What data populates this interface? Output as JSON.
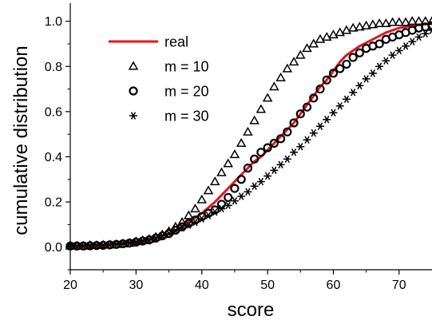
{
  "chart_data": {
    "type": "line",
    "xlabel": "score",
    "ylabel": "cumulative distribution",
    "xlim": [
      20,
      75
    ],
    "ylim": [
      -0.1,
      1.08
    ],
    "xticks": [
      "20",
      "30",
      "40",
      "50",
      "60",
      "70"
    ],
    "yticks": [
      "0.0",
      "0.2",
      "0.4",
      "0.6",
      "0.8",
      "1.0"
    ],
    "xtick_values": [
      20,
      30,
      40,
      50,
      60,
      70
    ],
    "ytick_values": [
      0.0,
      0.2,
      0.4,
      0.6,
      0.8,
      1.0
    ],
    "legend_position": "top-left",
    "series": [
      {
        "name": "real",
        "style": "line",
        "color": "#e8141b",
        "x": [
          20,
          25,
          30,
          33,
          35,
          37,
          38,
          40,
          42,
          44,
          46,
          48,
          49,
          50,
          51,
          52,
          53,
          54,
          55,
          56,
          57,
          58,
          59,
          60,
          61,
          62,
          63,
          64,
          66,
          68,
          70,
          72,
          75
        ],
        "y": [
          0.0,
          0.005,
          0.02,
          0.04,
          0.06,
          0.09,
          0.11,
          0.15,
          0.2,
          0.26,
          0.32,
          0.38,
          0.4,
          0.43,
          0.46,
          0.49,
          0.52,
          0.55,
          0.59,
          0.63,
          0.67,
          0.71,
          0.74,
          0.78,
          0.82,
          0.85,
          0.87,
          0.89,
          0.92,
          0.95,
          0.97,
          0.98,
          0.99
        ]
      },
      {
        "name": "m = 10",
        "style": "triangle",
        "color": "#000000",
        "x": [
          20,
          21,
          22,
          23,
          24,
          25,
          26,
          27,
          28,
          29,
          30,
          31,
          32,
          33,
          34,
          35,
          36,
          37,
          38,
          39,
          40,
          41,
          42,
          43,
          44,
          45,
          46,
          47,
          48,
          49,
          50,
          51,
          52,
          53,
          54,
          55,
          56,
          57,
          58,
          59,
          60,
          61,
          62,
          63,
          64,
          65,
          66,
          67,
          68,
          69,
          70,
          71,
          72,
          73,
          74,
          75
        ],
        "y": [
          0.005,
          0.005,
          0.005,
          0.008,
          0.008,
          0.01,
          0.01,
          0.012,
          0.015,
          0.018,
          0.025,
          0.03,
          0.035,
          0.045,
          0.055,
          0.07,
          0.09,
          0.11,
          0.14,
          0.17,
          0.21,
          0.25,
          0.29,
          0.33,
          0.37,
          0.41,
          0.46,
          0.51,
          0.56,
          0.61,
          0.66,
          0.71,
          0.75,
          0.79,
          0.82,
          0.85,
          0.88,
          0.9,
          0.92,
          0.93,
          0.94,
          0.95,
          0.96,
          0.97,
          0.975,
          0.98,
          0.985,
          0.99,
          0.99,
          0.995,
          0.995,
          0.995,
          1.0,
          1.0,
          1.0,
          1.0
        ]
      },
      {
        "name": "m = 20",
        "style": "circle",
        "color": "#000000",
        "x": [
          20,
          21,
          22,
          23,
          24,
          25,
          26,
          27,
          28,
          29,
          30,
          31,
          32,
          33,
          34,
          35,
          36,
          37,
          38,
          39,
          40,
          41,
          42,
          43,
          44,
          45,
          46,
          47,
          48,
          49,
          50,
          51,
          52,
          53,
          54,
          55,
          56,
          57,
          58,
          59,
          60,
          61,
          62,
          63,
          64,
          65,
          66,
          67,
          68,
          69,
          70,
          71,
          72,
          73,
          74,
          75
        ],
        "y": [
          0.005,
          0.005,
          0.005,
          0.006,
          0.007,
          0.008,
          0.01,
          0.012,
          0.015,
          0.018,
          0.022,
          0.027,
          0.032,
          0.04,
          0.05,
          0.06,
          0.075,
          0.09,
          0.105,
          0.12,
          0.135,
          0.15,
          0.165,
          0.19,
          0.22,
          0.26,
          0.3,
          0.35,
          0.39,
          0.42,
          0.44,
          0.46,
          0.48,
          0.51,
          0.55,
          0.59,
          0.62,
          0.66,
          0.7,
          0.74,
          0.77,
          0.79,
          0.81,
          0.84,
          0.86,
          0.88,
          0.89,
          0.9,
          0.92,
          0.93,
          0.94,
          0.95,
          0.96,
          0.97,
          0.975,
          0.98
        ]
      },
      {
        "name": "m = 30",
        "style": "asterisk",
        "color": "#000000",
        "x": [
          20,
          21,
          22,
          23,
          24,
          25,
          26,
          27,
          28,
          29,
          30,
          31,
          32,
          33,
          34,
          35,
          36,
          37,
          38,
          39,
          40,
          41,
          42,
          43,
          44,
          45,
          46,
          47,
          48,
          49,
          50,
          51,
          52,
          53,
          54,
          55,
          56,
          57,
          58,
          59,
          60,
          61,
          62,
          63,
          64,
          65,
          66,
          67,
          68,
          69,
          70,
          71,
          72,
          73,
          74,
          75
        ],
        "y": [
          0.004,
          0.004,
          0.005,
          0.006,
          0.007,
          0.008,
          0.01,
          0.012,
          0.015,
          0.018,
          0.022,
          0.027,
          0.032,
          0.04,
          0.05,
          0.06,
          0.072,
          0.085,
          0.098,
          0.11,
          0.125,
          0.14,
          0.155,
          0.17,
          0.185,
          0.205,
          0.225,
          0.245,
          0.27,
          0.29,
          0.315,
          0.34,
          0.365,
          0.39,
          0.42,
          0.445,
          0.475,
          0.505,
          0.535,
          0.565,
          0.595,
          0.625,
          0.655,
          0.685,
          0.715,
          0.745,
          0.77,
          0.8,
          0.825,
          0.85,
          0.87,
          0.89,
          0.91,
          0.93,
          0.945,
          0.96
        ]
      }
    ]
  }
}
